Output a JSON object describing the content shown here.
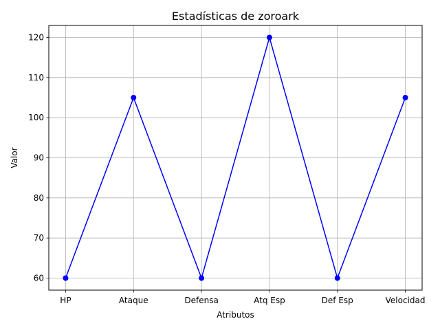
{
  "chart_data": {
    "type": "line",
    "title": "Estadísticas de zoroark",
    "xlabel": "Atributos",
    "ylabel": "Valor",
    "categories": [
      "HP",
      "Ataque",
      "Defensa",
      "Atq Esp",
      "Def Esp",
      "Velocidad"
    ],
    "series": [
      {
        "values": [
          60,
          105,
          60,
          120,
          60,
          105
        ],
        "color": "#0000ff",
        "marker": "circle"
      }
    ],
    "ylim": [
      57,
      123
    ],
    "yticks": [
      60,
      70,
      80,
      90,
      100,
      110,
      120
    ],
    "grid": true,
    "colors": {
      "line": "#0000ff",
      "grid": "#b0b0b0",
      "axes": "#000000"
    }
  }
}
